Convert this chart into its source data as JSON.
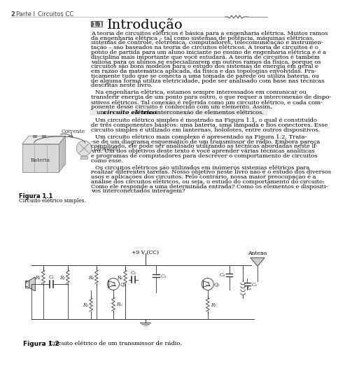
{
  "page_number": "2",
  "header_left": "Parte I",
  "header_center": "Circuitos CC",
  "section_number": "1.1",
  "section_title": "Introdução",
  "body_text": [
    "A teoria de circuitos elétricos é básica para a engenharia elétrica. Muitos ramos",
    "da engenharia elétrica – tal como sistemas de potência, máquinas elétricas,",
    "sistemas de controle, eletrônica, computadores, telecomunicação e instrumen-",
    "tação – são baseados na teoria de circuitos elétricos. A teoria de circuitos é o",
    "ponto de partida para um aluno iniciante no ensino de engenharia elétrica e é a",
    "disciplina mais importante que você estudará. A teoria de circuitos é também",
    "valiosa para os alunos se especializarem em outros ramos da física, porque os",
    "circuitos são bons modelos para o estudo dos sistemas de energia em geral e",
    "em razão da matemática aplicada, da física e das topologias envolvidas. Pra-",
    "ticamente tudo que se conecta a uma tomada de parede ou utiliza bateria, ou",
    "de alguma forma utiliza eletricidade, pode ser analisado com base nas técnicas",
    "descritas neste livro."
  ],
  "body_text2": [
    "Na engenharia elétrica, estamos sempre interessados em comunicar ou",
    "transferir energia de um ponto para outro, o que requer a interconexão de dispo-",
    "sitivos elétricos. Tal conexão é referida como um circuito elétrico, e cada com-",
    "ponente desse circuito é conhecido com um elemento. Assim,"
  ],
  "body_text3": [
    "Um circuito elétrico simples é mostrado na Figura 1.1, o qual é constituído",
    "de três componentes básicos: uma bateria, uma lâmpada e fios conectores. Esse",
    "circuito simples é utilizado em lanternas, holofotes, entre outros dispositivos."
  ],
  "body_text4": [
    "Um circuito elétrico mais complexo é apresentado na Figura 1.2. Trata-",
    "-se de um diagrama esquemático de um transmissor de rádio. Embora pareça",
    "complicado, ele pode ser analisado utilizando as técnicas abordadas neste li-",
    "vro. Um dos objetivos deste texto é você aprender várias técnicas analíticas",
    "e programas de computadores para descrever o comportamento de circuitos",
    "como esse."
  ],
  "body_text5": [
    "Os circuitos elétricos são utilizados em inúmeros sistemas elétricos para",
    "realizar diferentes tarefas. Nosso objetivo neste livro não é o estudo dos diversos",
    "usos e aplicações dos circuitos. Pelo contrário, nossa maior preocupação é a",
    "análise dos circuitos elétricos, ou seja, o estudo do comportamento do circuito:",
    "Como ele responde a uma determinada entrada? Como os elementos e dispositi-",
    "vos interconectados interagem?"
  ],
  "fig1_caption_bold": "Figura 1.1",
  "fig1_caption": "Circuito elétrico simples.",
  "fig2_caption_bold": "Figura 1.2",
  "fig2_caption": "Circuito elétrico de um transmissor de rádio.",
  "bg_color": "#ffffff",
  "text_color": "#000000",
  "header_color": "#444444",
  "section_box_color": "#666666",
  "highlight_bg": "#ebebeb",
  "fig1_label_corrente": "Corrente",
  "fig1_label_bateria": "Bateria",
  "fig1_label_lampada": "Lâmpada",
  "fig2_voltage": "+9 V (CC)",
  "fig2_antenna": "Antena"
}
